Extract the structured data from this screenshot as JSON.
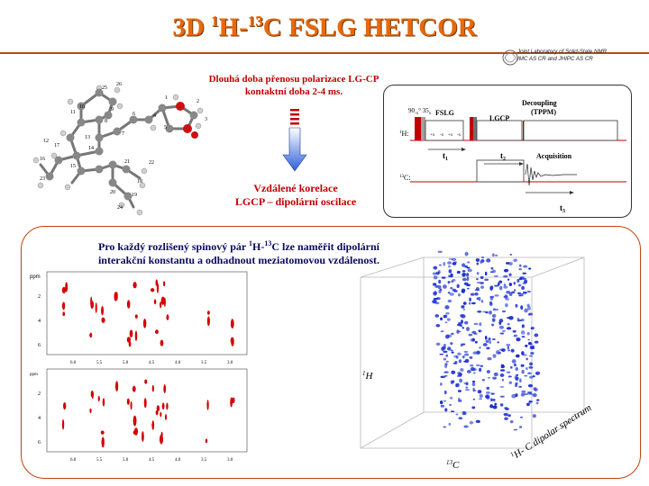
{
  "header": {
    "title_prefix": "3D ",
    "sup1": "1",
    "title_mid": "H-",
    "sup2": "13",
    "title_suffix": "C FSLG HETCOR",
    "logo_lines": [
      "Joint Laboratory of Solid-State NMR",
      "IMC AS CR and JHIPC AS CR"
    ]
  },
  "molecule": {
    "atom_labels": [
      "25",
      "26",
      "10",
      "9",
      "11",
      "8",
      "7",
      "6",
      "5",
      "4",
      "1",
      "2",
      "3",
      "12",
      "13",
      "14",
      "15",
      "16",
      "17",
      "18",
      "19",
      "20",
      "21",
      "22",
      "23",
      "24"
    ]
  },
  "arrow_panel": {
    "text_top": "Dlouhá doba přenosu polarizace LG-CP kontaktní doba 2-4 ms.",
    "text_line1": "Vzdálené korelace",
    "text_line2": "LGCP – dipolární oscilace"
  },
  "pulse_sequence": {
    "label_pulse": "90",
    "label_pulse_sub": "-x",
    "label_angle": "35",
    "label_angle_sub": "x",
    "label_fslg": "FSLG",
    "label_lgcp": "LGCP",
    "label_decoupling": "Decoupling",
    "label_tppm": "(TPPM)",
    "channel_h": "H:",
    "channel_h_sup": "1",
    "channel_c": "C:",
    "channel_c_sup": "13",
    "t1": "t",
    "t1_sub": "1",
    "t2": "t",
    "t2_sub": "2",
    "t3": "t",
    "t3_sub": "3",
    "acquisition": "Acquisition",
    "fslg_labels": [
      "+x",
      "-x",
      "+x",
      "-x"
    ]
  },
  "bottom": {
    "desc_line1_a": "Pro každý rozlišený spinový pár ",
    "desc_line1_h": "1",
    "desc_line1_b": "H-",
    "desc_line1_c": "13",
    "desc_line1_d": "C lze naměřit dipolární",
    "desc_line2": "interakční konstantu  a odhadnout meziatomovou vzdálenost.",
    "axis_1h": "H",
    "axis_1h_sup": "1",
    "axis_13c": "C",
    "axis_13c_sup": "13",
    "axis_dipolar": "H-  C dipolar spectrum",
    "axis_dipolar_sup1": "1",
    "axis_dipolar_sup2": "13"
  },
  "spectra": {
    "ppm_label": "ppm",
    "x_ticks": [
      "6.0",
      "5.5",
      "5.0",
      "4.5",
      "4.0",
      "3.5",
      "3.0",
      "2.5",
      "2.0",
      "1.5",
      "1.0"
    ],
    "y_ticks": [
      "2",
      "4",
      "6"
    ],
    "color": "#d40000"
  },
  "colors": {
    "title": "#e8690b",
    "accent": "#c0440f",
    "red_text": "#c00000",
    "navy_text": "#0a0a60",
    "spectrum_3d": "#1a2fd0"
  }
}
